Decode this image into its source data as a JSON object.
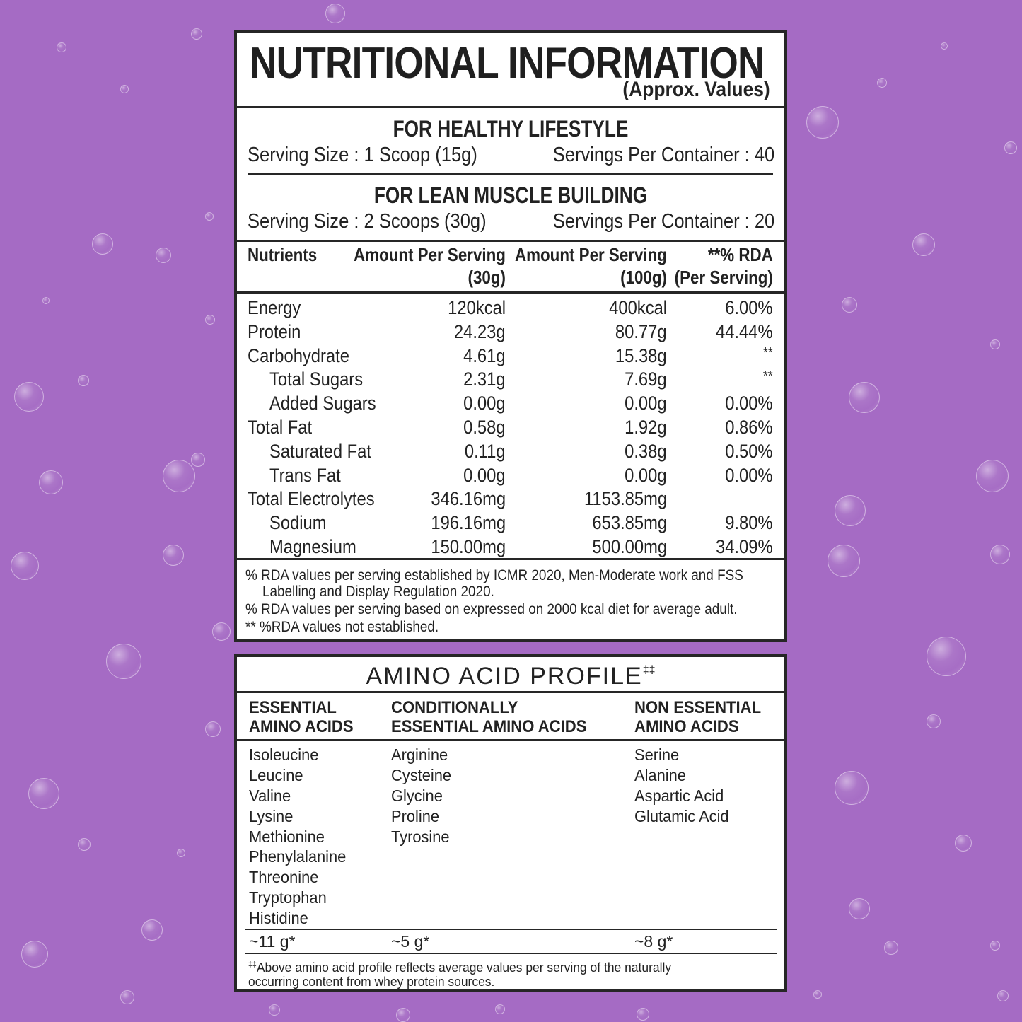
{
  "colors": {
    "background": "#a56bc4",
    "panel": "#ffffff",
    "border": "#262626",
    "text": "#222222"
  },
  "nutrition": {
    "title": "NUTRITIONAL INFORMATION",
    "subtitle": "(Approx. Values)",
    "healthy": {
      "heading": "FOR HEALTHY LIFESTYLE",
      "serving_size": "Serving Size : 1 Scoop (15g)",
      "servings_per_container": "Servings Per Container : 40"
    },
    "lean": {
      "heading": "FOR LEAN MUSCLE BUILDING",
      "serving_size": "Serving Size : 2 Scoops (30g)",
      "servings_per_container": "Servings Per Container : 20"
    },
    "table": {
      "headers": {
        "nutrients": "Nutrients",
        "per_serving_1": "Amount Per Serving",
        "per_serving_2": "(30g)",
        "per_100_1": "Amount Per Serving",
        "per_100_2": "(100g)",
        "rda_1": "**% RDA",
        "rda_2": "(Per Serving)"
      },
      "rows": [
        {
          "name": "Energy",
          "per_serving": "120kcal",
          "per_100g": "400kcal",
          "rda": "6.00%",
          "indent": false
        },
        {
          "name": "Protein",
          "per_serving": "24.23g",
          "per_100g": "80.77g",
          "rda": "44.44%",
          "indent": false
        },
        {
          "name": "Carbohydrate",
          "per_serving": "4.61g",
          "per_100g": "15.38g",
          "rda": "**",
          "indent": false
        },
        {
          "name": "Total Sugars",
          "per_serving": "2.31g",
          "per_100g": "7.69g",
          "rda": "**",
          "indent": true
        },
        {
          "name": "Added Sugars",
          "per_serving": "0.00g",
          "per_100g": "0.00g",
          "rda": "0.00%",
          "indent": true
        },
        {
          "name": "Total Fat",
          "per_serving": "0.58g",
          "per_100g": "1.92g",
          "rda": "0.86%",
          "indent": false
        },
        {
          "name": "Saturated Fat",
          "per_serving": "0.11g",
          "per_100g": "0.38g",
          "rda": "0.50%",
          "indent": true
        },
        {
          "name": "Trans Fat",
          "per_serving": "0.00g",
          "per_100g": "0.00g",
          "rda": "0.00%",
          "indent": true
        },
        {
          "name": "Total Electrolytes",
          "per_serving": "346.16mg",
          "per_100g": "1153.85mg",
          "rda": "",
          "indent": false
        },
        {
          "name": "Sodium",
          "per_serving": "196.16mg",
          "per_100g": "653.85mg",
          "rda": "9.80%",
          "indent": true
        },
        {
          "name": "Magnesium",
          "per_serving": "150.00mg",
          "per_100g": "500.00mg",
          "rda": "34.09%",
          "indent": true
        }
      ]
    },
    "footnotes": [
      "% RDA values per serving established by ICMR 2020, Men-Moderate work and FSS",
      "   Labelling and Display Regulation 2020.",
      "% RDA values per serving based on expressed on 2000 kcal diet for average adult.",
      "** %RDA values not established."
    ]
  },
  "amino": {
    "title": "AMINO ACID PROFILE",
    "title_mark": "‡‡",
    "columns": [
      {
        "heading_1": "ESSENTIAL",
        "heading_2": "AMINO ACIDS",
        "items": [
          "Isoleucine",
          "Leucine",
          "Valine",
          "Lysine",
          "Methionine",
          "Phenylalanine",
          "Threonine",
          "Tryptophan",
          "Histidine"
        ],
        "total": "~11 g*"
      },
      {
        "heading_1": "CONDITIONALLY",
        "heading_2": "ESSENTIAL AMINO ACIDS",
        "items": [
          "Arginine",
          "Cysteine",
          "Glycine",
          "Proline",
          "Tyrosine"
        ],
        "total": "~5 g*"
      },
      {
        "heading_1": "NON ESSENTIAL",
        "heading_2": "AMINO ACIDS",
        "items": [
          "Serine",
          "Alanine",
          "Aspartic Acid",
          "Glutamic Acid"
        ],
        "total": "~8 g*"
      }
    ],
    "note_mark": "‡‡",
    "note_line_1": "Above amino acid profile reflects average values per serving of the naturally",
    "note_line_2": "occurring content from whey protein sources."
  }
}
